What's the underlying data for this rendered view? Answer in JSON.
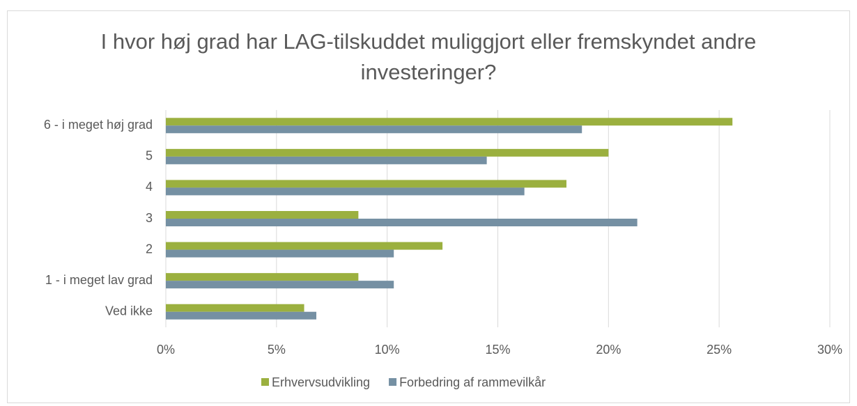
{
  "chart_data": {
    "type": "hbar",
    "title": "I hvor høj grad har LAG-tilskuddet muliggjort eller fremskyndet andre investeringer?",
    "categories": [
      "6 - i meget høj grad",
      "5",
      "4",
      "3",
      "2",
      "1 - i meget lav grad",
      "Ved ikke"
    ],
    "series": [
      {
        "name": "Erhvervsudvikling",
        "color": "#9bb03f",
        "values": [
          25.6,
          20.0,
          18.1,
          8.7,
          12.5,
          8.7,
          6.25
        ]
      },
      {
        "name": "Forbedring af rammevilkår",
        "color": "#7590a3",
        "values": [
          18.8,
          14.5,
          16.2,
          21.3,
          10.3,
          10.3,
          6.8
        ]
      }
    ],
    "xlim": [
      0,
      30
    ],
    "xticks": [
      {
        "value": 0,
        "label": "0%"
      },
      {
        "value": 5,
        "label": "5%"
      },
      {
        "value": 10,
        "label": "10%"
      },
      {
        "value": 15,
        "label": "15%"
      },
      {
        "value": 20,
        "label": "20%"
      },
      {
        "value": 25,
        "label": "25%"
      },
      {
        "value": 30,
        "label": "30%"
      }
    ],
    "grid": true,
    "legend": "bottom"
  }
}
